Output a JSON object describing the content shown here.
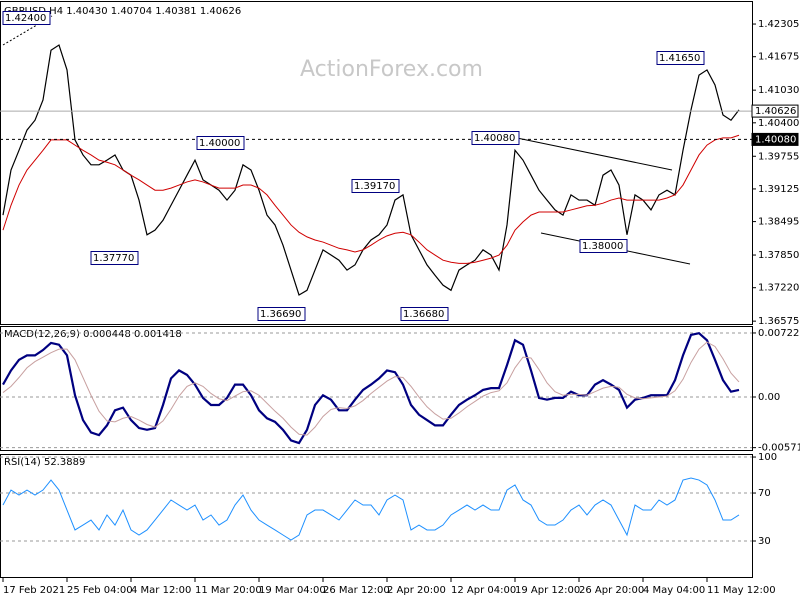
{
  "chart_data": [
    {
      "type": "line",
      "title": "GBPUSD,H4  1.40430 1.40704 1.40381 1.40626",
      "watermark": "ActionForex.com",
      "categories": [
        "17 Feb 2021",
        null,
        null,
        null,
        null,
        null,
        null,
        null,
        "25 Feb 04:00",
        null,
        null,
        null,
        null,
        null,
        null,
        null,
        "4 Mar 12:00",
        null,
        null,
        null,
        null,
        null,
        null,
        null,
        "11 Mar 20:00",
        null,
        null,
        null,
        null,
        null,
        null,
        null,
        "19 Mar 04:00",
        null,
        null,
        null,
        null,
        null,
        null,
        null,
        "26 Mar 12:00",
        null,
        null,
        null,
        null,
        null,
        null,
        null,
        "2 Apr 20:00",
        null,
        null,
        null,
        null,
        null,
        null,
        null,
        "12 Apr 04:00",
        null,
        null,
        null,
        null,
        null,
        null,
        null,
        "19 Apr 12:00",
        null,
        null,
        null,
        null,
        null,
        null,
        null,
        "26 Apr 20:00",
        null,
        null,
        null,
        null,
        null,
        null,
        null,
        "4 May 04:00",
        null,
        null,
        null,
        null,
        null,
        null,
        null,
        "11 May 12:00",
        null,
        null,
        null,
        null
      ],
      "series": [
        {
          "color": "#000000",
          "values": [
            1.3862,
            1.3949,
            1.3987,
            1.4026,
            1.4045,
            1.4084,
            1.418,
            1.419,
            1.4142,
            1.4007,
            1.3978,
            1.3959,
            1.3959,
            1.3968,
            1.3978,
            1.3949,
            1.3939,
            1.3891,
            1.3824,
            1.3833,
            1.3852,
            1.3881,
            1.391,
            1.3939,
            1.3968,
            1.393,
            1.392,
            1.391,
            1.3891,
            1.391,
            1.3959,
            1.3949,
            1.391,
            1.3862,
            1.3843,
            1.3804,
            1.3756,
            1.3708,
            1.3717,
            1.3756,
            1.3795,
            1.3785,
            1.3775,
            1.3756,
            1.3766,
            1.3795,
            1.3814,
            1.3824,
            1.3843,
            1.3891,
            1.3901,
            1.3824,
            1.3795,
            1.3766,
            1.3746,
            1.3727,
            1.3717,
            1.3756,
            1.3766,
            1.3775,
            1.3795,
            1.3785,
            1.3756,
            1.3843,
            1.3987,
            1.3968,
            1.3939,
            1.391,
            1.3891,
            1.3872,
            1.3862,
            1.3901,
            1.3891,
            1.3891,
            1.3881,
            1.3939,
            1.3949,
            1.392,
            1.3824,
            1.3901,
            1.3891,
            1.3872,
            1.3901,
            1.391,
            1.3901,
            1.3987,
            1.4065,
            1.4132,
            1.4142,
            1.4113,
            1.4055,
            1.4045,
            1.4065
          ]
        },
        {
          "color": "#d00000",
          "values": [
            1.3833,
            1.3881,
            1.392,
            1.3949,
            1.3968,
            1.3987,
            1.4007,
            1.4007,
            1.4007,
            1.3997,
            1.3987,
            1.3978,
            1.3968,
            1.3964,
            1.3959,
            1.3949,
            1.3939,
            1.393,
            1.392,
            1.391,
            1.391,
            1.3914,
            1.392,
            1.3926,
            1.393,
            1.3926,
            1.392,
            1.3914,
            1.3914,
            1.3914,
            1.392,
            1.392,
            1.3914,
            1.3901,
            1.3881,
            1.3862,
            1.3843,
            1.3829,
            1.382,
            1.3814,
            1.381,
            1.3804,
            1.3798,
            1.3795,
            1.3791,
            1.3795,
            1.3804,
            1.3814,
            1.3822,
            1.3827,
            1.3829,
            1.3824,
            1.381,
            1.3795,
            1.3785,
            1.3775,
            1.3771,
            1.3769,
            1.3769,
            1.3771,
            1.3775,
            1.3779,
            1.3785,
            1.3804,
            1.3833,
            1.3849,
            1.3862,
            1.3868,
            1.3868,
            1.3868,
            1.3868,
            1.3872,
            1.3876,
            1.388,
            1.3881,
            1.3885,
            1.3891,
            1.3895,
            1.3891,
            1.3891,
            1.3891,
            1.3891,
            1.3891,
            1.3895,
            1.3901,
            1.392,
            1.3949,
            1.3978,
            1.3997,
            1.4007,
            1.4011,
            1.4011,
            1.4016
          ]
        }
      ],
      "ylim": [
        1.3652,
        1.4273
      ],
      "yticks": [
        1.42305,
        1.41675,
        {
          "value": 1.4103,
          "label": "1.41030"
        },
        {
          "value": 1.404,
          "label": "1.40400"
        },
        1.39755,
        1.39125,
        1.38495,
        {
          "value": 1.3785,
          "label": "1.37850"
        },
        {
          "value": 1.3722,
          "label": "1.37220"
        },
        1.36575
      ],
      "price_lines": [
        {
          "value": 1.40626,
          "label": "1.40626",
          "style": "solid"
        },
        {
          "value": 1.4008,
          "label": "1.40080",
          "style": "dashed"
        }
      ],
      "annotations": [
        "1.42400",
        "1.41650",
        "1.40000",
        "1.39170",
        "1.40080",
        "1.37770",
        "1.36690",
        "1.36680",
        "1.38000"
      ]
    },
    {
      "type": "line",
      "title": "MACD(12,26,9) 0.000448 0.001418",
      "series": [
        {
          "color": "#000080",
          "values": [
            0.0014,
            0.003,
            0.0042,
            0.0047,
            0.0047,
            0.0053,
            0.0061,
            0.0059,
            0.0047,
            0.0002,
            -0.0026,
            -0.004,
            -0.0043,
            -0.0032,
            -0.0015,
            -0.0012,
            -0.0026,
            -0.0035,
            -0.0037,
            -0.0035,
            -0.0009,
            0.0021,
            0.003,
            0.0025,
            0.0014,
            -0.0001,
            -0.0009,
            -0.0009,
            -0.0001,
            0.0014,
            0.0014,
            0.0002,
            -0.0015,
            -0.0024,
            -0.0028,
            -0.0037,
            -0.0049,
            -0.0052,
            -0.0037,
            -0.0009,
            0.0002,
            -0.0003,
            -0.0015,
            -0.0015,
            -0.0003,
            0.0008,
            0.0014,
            0.0021,
            0.003,
            0.0028,
            0.0014,
            -0.0009,
            -0.002,
            -0.0026,
            -0.0032,
            -0.0032,
            -0.002,
            -0.0009,
            -0.0003,
            0.0002,
            0.0008,
            0.001,
            0.001,
            0.0036,
            0.0064,
            0.0059,
            0.003,
            -0.0001,
            -0.0003,
            -0.0001,
            -0.0001,
            0.0006,
            0.0002,
            0.0002,
            0.0014,
            0.0019,
            0.0014,
            0.0008,
            -0.0012,
            -0.0003,
            -0.0001,
            0.0002,
            0.0002,
            0.0002,
            0.0019,
            0.0047,
            0.007,
            0.0072,
            0.0064,
            0.0042,
            0.0019,
            0.0006,
            0.0008
          ]
        },
        {
          "color": "#c8a0a0",
          "values": [
            0.0005,
            0.0012,
            0.0022,
            0.0033,
            0.004,
            0.0045,
            0.005,
            0.0054,
            0.0054,
            0.0042,
            0.0022,
            0.0002,
            -0.0016,
            -0.0027,
            -0.0028,
            -0.0024,
            -0.0022,
            -0.0026,
            -0.0031,
            -0.0034,
            -0.0027,
            -0.0014,
            0.0001,
            0.0012,
            0.0016,
            0.0012,
            0.0004,
            -0.0002,
            -0.0004,
            0.0001,
            0.0006,
            0.0007,
            0.0002,
            -0.0007,
            -0.0016,
            -0.0024,
            -0.0034,
            -0.0042,
            -0.0043,
            -0.0034,
            -0.0022,
            -0.0014,
            -0.0012,
            -0.0013,
            -0.001,
            -0.0004,
            0.0004,
            0.0011,
            0.0018,
            0.0023,
            0.0022,
            0.0012,
            0.0,
            -0.0011,
            -0.0019,
            -0.0025,
            -0.0024,
            -0.0018,
            -0.0011,
            -0.0005,
            0.0001,
            0.0005,
            0.0007,
            0.0016,
            0.0033,
            0.0045,
            0.0044,
            0.0031,
            0.0016,
            0.0006,
            0.0002,
            0.0003,
            0.0003,
            0.0002,
            0.0006,
            0.001,
            0.0012,
            0.0011,
            0.0003,
            -0.0001,
            -0.0002,
            -0.0001,
            0.0,
            0.0001,
            0.0007,
            0.002,
            0.0039,
            0.0054,
            0.0062,
            0.0057,
            0.0043,
            0.0027,
            0.0017
          ]
        }
      ],
      "ylim": [
        -0.00598,
        0.0079
      ],
      "yticks": [
        0.007227,
        {
          "value": 0,
          "label": "0.00"
        },
        -0.005714
      ],
      "grid": true
    },
    {
      "type": "line",
      "title": "RSI(14) 52.3889",
      "series": [
        {
          "color": "#1e90ff",
          "values": [
            60.0,
            72.5,
            68.3,
            72.5,
            68.3,
            72.5,
            80.8,
            72.5,
            55.8,
            39.2,
            43.3,
            47.5,
            39.2,
            51.7,
            43.3,
            55.8,
            39.2,
            35.0,
            39.2,
            47.5,
            55.8,
            64.2,
            60.0,
            55.8,
            60.0,
            47.5,
            51.7,
            43.3,
            47.5,
            60.0,
            68.3,
            55.8,
            47.5,
            43.3,
            39.2,
            35.0,
            30.8,
            35.0,
            51.7,
            55.8,
            55.8,
            51.7,
            47.5,
            55.8,
            64.2,
            60.0,
            60.0,
            51.7,
            64.2,
            68.3,
            64.2,
            39.2,
            43.3,
            39.2,
            39.2,
            43.3,
            51.7,
            55.8,
            60.0,
            55.8,
            60.0,
            55.8,
            55.8,
            72.5,
            76.7,
            64.2,
            60.0,
            47.5,
            43.3,
            43.3,
            47.5,
            55.8,
            60.0,
            51.7,
            60.0,
            64.2,
            60.0,
            47.5,
            35.0,
            60.0,
            55.8,
            55.8,
            64.2,
            60.0,
            64.2,
            80.8,
            82.5,
            80.8,
            76.7,
            64.2,
            47.5,
            47.5,
            51.7
          ]
        }
      ],
      "ylim": [
        0,
        101.7
      ],
      "yticks": [
        100,
        70,
        30
      ],
      "grid": true
    }
  ]
}
